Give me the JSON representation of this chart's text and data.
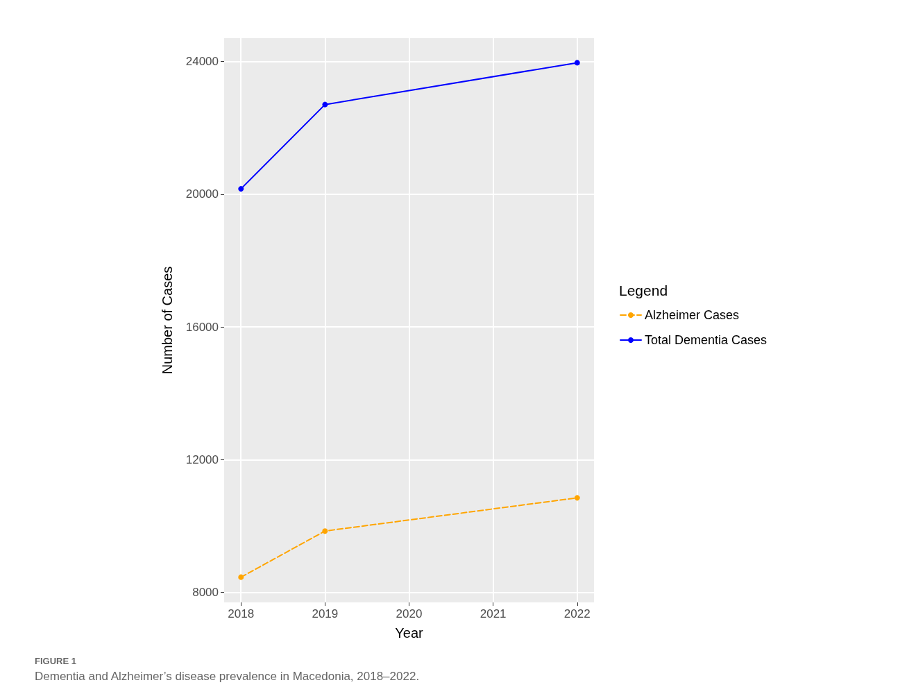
{
  "chart_data": {
    "type": "line",
    "xlabel": "Year",
    "ylabel": "Number of Cases",
    "legend_title": "Legend",
    "annotations": [
      "FIGURE 1",
      "Dementia and Alzheimer’s disease prevalence in Macedonia, 2018–2022."
    ],
    "x": [
      2018,
      2019,
      2022
    ],
    "series": [
      {
        "name": "Alzheimer Cases",
        "color": "#ffa500",
        "values": [
          8460,
          9850,
          10850
        ],
        "line_style": "dashed"
      },
      {
        "name": "Total Dementia Cases",
        "color": "#0000ff",
        "values": [
          20160,
          22700,
          23960
        ],
        "line_style": "solid"
      }
    ],
    "xlim": [
      2017.8,
      2022.2
    ],
    "xticks": [
      2018,
      2019,
      2020,
      2021,
      2022
    ],
    "ylim": [
      7700,
      24700
    ],
    "yticks": [
      8000,
      12000,
      16000,
      20000,
      24000
    ],
    "grid": true,
    "legend": "right",
    "marker": "circle"
  }
}
